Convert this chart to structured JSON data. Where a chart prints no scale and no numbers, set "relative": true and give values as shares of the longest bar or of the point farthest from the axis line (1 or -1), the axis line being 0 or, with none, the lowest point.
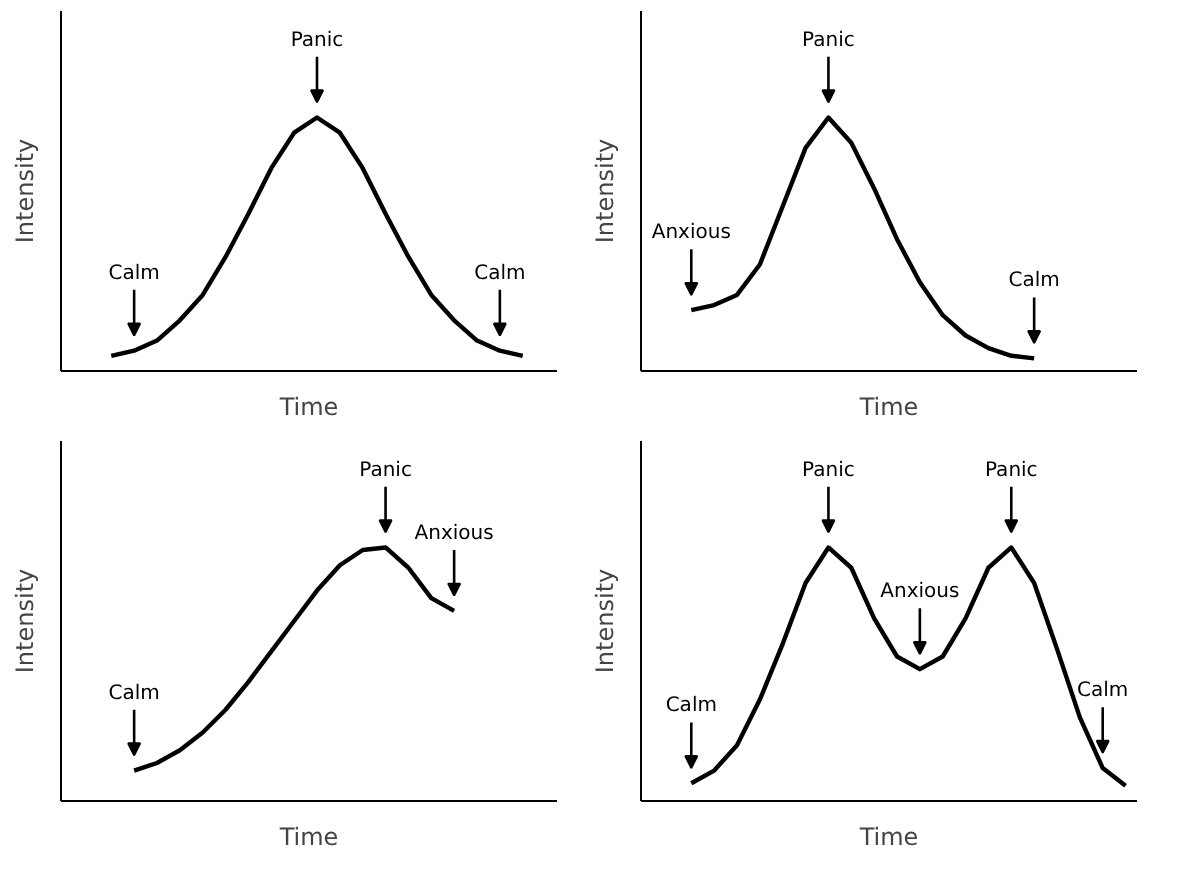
{
  "chart_data": [
    {
      "type": "line",
      "relative": true,
      "xlabel": "Time",
      "ylabel": "Intensity",
      "grid": false,
      "categories": [
        null,
        null,
        null,
        null,
        null,
        null,
        null,
        null,
        null,
        null,
        null,
        null,
        null,
        null,
        null,
        null,
        null,
        null,
        null,
        null,
        null
      ],
      "series": [
        {
          "color": "#000000",
          "values": [
            null,
            0.06,
            0.08,
            0.12,
            0.2,
            0.3,
            0.45,
            0.62,
            0.8,
            0.94,
            1,
            0.94,
            0.8,
            0.62,
            0.45,
            0.3,
            0.2,
            0.12,
            0.08,
            0.06,
            null
          ]
        }
      ],
      "annotations": [
        {
          "text": "Calm",
          "y": 0.08
        },
        {
          "text": "Panic",
          "y": 1
        },
        {
          "text": "Calm",
          "y": 0.08
        }
      ]
    },
    {
      "type": "line",
      "relative": true,
      "xlabel": "Time",
      "ylabel": "Intensity",
      "grid": false,
      "categories": [
        null,
        null,
        null,
        null,
        null,
        null,
        null,
        null,
        null,
        null,
        null,
        null,
        null,
        null,
        null,
        null,
        null,
        null,
        null,
        null,
        null
      ],
      "series": [
        {
          "color": "#000000",
          "values": [
            null,
            0.24,
            0.26,
            0.3,
            0.42,
            0.65,
            0.88,
            1,
            0.9,
            0.72,
            0.52,
            0.35,
            0.22,
            0.14,
            0.09,
            0.06,
            0.05,
            null,
            null,
            null,
            null
          ]
        }
      ],
      "annotations": [
        {
          "text": "Anxious",
          "y": 0.24
        },
        {
          "text": "Panic",
          "y": 1
        },
        {
          "text": "Calm",
          "y": 0.05
        }
      ]
    },
    {
      "type": "line",
      "relative": true,
      "xlabel": "Time",
      "ylabel": "Intensity",
      "grid": false,
      "categories": [
        null,
        null,
        null,
        null,
        null,
        null,
        null,
        null,
        null,
        null,
        null,
        null,
        null,
        null,
        null,
        null,
        null,
        null,
        null,
        null,
        null
      ],
      "series": [
        {
          "color": "#000000",
          "values": [
            null,
            null,
            0.12,
            0.15,
            0.2,
            0.27,
            0.36,
            0.47,
            0.59,
            0.71,
            0.83,
            0.93,
            0.99,
            1,
            0.92,
            0.8,
            0.75,
            null,
            null,
            null,
            null
          ]
        }
      ],
      "annotations": [
        {
          "text": "Calm",
          "y": 0.12
        },
        {
          "text": "Panic",
          "y": 1
        },
        {
          "text": "Anxious",
          "y": 0.75
        }
      ]
    },
    {
      "type": "line",
      "relative": true,
      "xlabel": "Time",
      "ylabel": "Intensity",
      "grid": false,
      "categories": [
        null,
        null,
        null,
        null,
        null,
        null,
        null,
        null,
        null,
        null,
        null,
        null,
        null,
        null,
        null,
        null,
        null,
        null,
        null,
        null,
        null
      ],
      "series": [
        {
          "color": "#000000",
          "values": [
            null,
            0.07,
            0.12,
            0.22,
            0.4,
            0.62,
            0.86,
            1,
            0.92,
            0.72,
            0.57,
            0.52,
            0.57,
            0.72,
            0.92,
            1,
            0.86,
            0.6,
            0.33,
            0.13,
            0.06
          ]
        }
      ],
      "annotations": [
        {
          "text": "Calm",
          "y": 0.07
        },
        {
          "text": "Panic",
          "y": 1
        },
        {
          "text": "Anxious",
          "y": 0.52
        },
        {
          "text": "Panic",
          "y": 1
        },
        {
          "text": "Calm",
          "y": 0.13
        }
      ]
    }
  ]
}
